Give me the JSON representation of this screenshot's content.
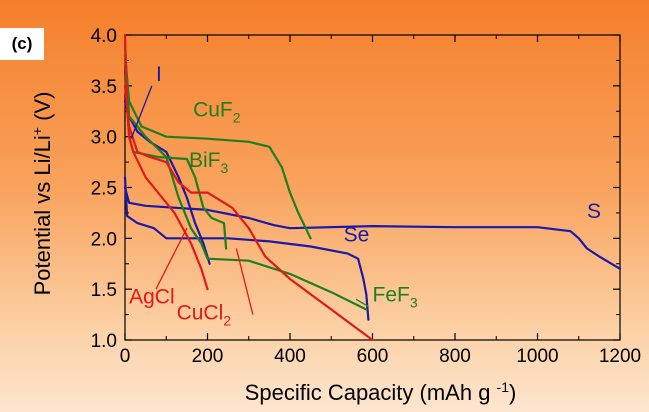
{
  "panel_label": "(c)",
  "chart_data": {
    "type": "line",
    "xlabel_main": "Specific Capacity",
    "xlabel_unit": "mAh g",
    "xlabel_unit_sup": "-1",
    "ylabel_main": "Potential vs Li/Li",
    "ylabel_sup": "+",
    "ylabel_unit": "(V)",
    "xlim": [
      0,
      1200
    ],
    "ylim": [
      1.0,
      4.0
    ],
    "xticks": [
      "0",
      "200",
      "400",
      "600",
      "800",
      "1000",
      "1200"
    ],
    "yticks": [
      "1.0",
      "1.5",
      "2.0",
      "2.5",
      "3.0",
      "3.5",
      "4.0"
    ],
    "grid": false,
    "series": [
      {
        "name": "S",
        "label_main": "S",
        "label_sub": "",
        "color": "#1a1aa8",
        "label_at": [
          1120,
          2.2
        ],
        "points": [
          [
            0,
            2.5
          ],
          [
            10,
            2.35
          ],
          [
            50,
            2.32
          ],
          [
            200,
            2.28
          ],
          [
            300,
            2.2
          ],
          [
            360,
            2.13
          ],
          [
            400,
            2.1
          ],
          [
            600,
            2.12
          ],
          [
            800,
            2.11
          ],
          [
            1000,
            2.11
          ],
          [
            1080,
            2.07
          ],
          [
            1100,
            2.0
          ],
          [
            1120,
            1.9
          ],
          [
            1150,
            1.82
          ],
          [
            1200,
            1.7
          ]
        ]
      },
      {
        "name": "Se",
        "label_main": "Se",
        "label_sub": "",
        "color": "#1a1aa8",
        "label_at": [
          530,
          1.97
        ],
        "points": [
          [
            0,
            2.6
          ],
          [
            5,
            2.22
          ],
          [
            30,
            2.15
          ],
          [
            70,
            2.1
          ],
          [
            100,
            2.0
          ],
          [
            150,
            2.0
          ],
          [
            250,
            2.0
          ],
          [
            350,
            1.97
          ],
          [
            450,
            1.92
          ],
          [
            540,
            1.85
          ],
          [
            565,
            1.8
          ],
          [
            578,
            1.6
          ],
          [
            585,
            1.45
          ],
          [
            590,
            1.2
          ]
        ]
      },
      {
        "name": "I",
        "label_main": "I",
        "label_sub": "",
        "color": "#1a1aa8",
        "label_at": [
          75,
          3.55
        ],
        "points": [
          [
            0,
            3.35
          ],
          [
            10,
            3.2
          ],
          [
            30,
            3.05
          ],
          [
            60,
            2.95
          ],
          [
            100,
            2.85
          ],
          [
            130,
            2.6
          ],
          [
            150,
            2.4
          ],
          [
            170,
            2.15
          ],
          [
            190,
            1.95
          ],
          [
            205,
            1.75
          ]
        ]
      },
      {
        "name": "CuF2",
        "label_main": "CuF",
        "label_sub": "2",
        "color": "#1f7f1f",
        "label_at": [
          165,
          3.2
        ],
        "points": [
          [
            0,
            3.8
          ],
          [
            10,
            3.35
          ],
          [
            40,
            3.1
          ],
          [
            100,
            3.0
          ],
          [
            200,
            2.98
          ],
          [
            300,
            2.95
          ],
          [
            350,
            2.9
          ],
          [
            380,
            2.7
          ],
          [
            400,
            2.45
          ],
          [
            420,
            2.25
          ],
          [
            450,
            2.0
          ]
        ]
      },
      {
        "name": "BiF3",
        "label_main": "BiF",
        "label_sub": "3",
        "color": "#1f7f1f",
        "label_at": [
          155,
          2.7
        ],
        "points": [
          [
            0,
            3.6
          ],
          [
            10,
            3.0
          ],
          [
            20,
            2.85
          ],
          [
            80,
            2.8
          ],
          [
            150,
            2.78
          ],
          [
            170,
            2.6
          ],
          [
            190,
            2.3
          ],
          [
            210,
            2.2
          ],
          [
            240,
            2.15
          ],
          [
            245,
            1.9
          ]
        ]
      },
      {
        "name": "FeF3",
        "label_main": "FeF",
        "label_sub": "3",
        "color": "#1f7f1f",
        "label_at": [
          600,
          1.38
        ],
        "points": [
          [
            0,
            3.9
          ],
          [
            10,
            3.2
          ],
          [
            50,
            3.0
          ],
          [
            100,
            2.8
          ],
          [
            130,
            2.4
          ],
          [
            160,
            2.1
          ],
          [
            185,
            1.95
          ],
          [
            200,
            1.8
          ],
          [
            300,
            1.78
          ],
          [
            400,
            1.65
          ],
          [
            500,
            1.47
          ],
          [
            585,
            1.3
          ]
        ]
      },
      {
        "name": "AgCl",
        "label_main": "AgCl",
        "label_sub": "",
        "color": "#e01a1a",
        "label_at": [
          10,
          1.36
        ],
        "points": [
          [
            0,
            4.0
          ],
          [
            5,
            3.3
          ],
          [
            10,
            3.0
          ],
          [
            20,
            2.85
          ],
          [
            50,
            2.6
          ],
          [
            80,
            2.45
          ],
          [
            120,
            2.25
          ],
          [
            160,
            1.95
          ],
          [
            185,
            1.7
          ],
          [
            200,
            1.5
          ]
        ]
      },
      {
        "name": "CuCl2",
        "label_main": "CuCl",
        "label_sub": "2",
        "color": "#e01a1a",
        "label_at": [
          125,
          1.2
        ],
        "points": [
          [
            0,
            3.5
          ],
          [
            10,
            3.1
          ],
          [
            30,
            2.85
          ],
          [
            60,
            2.8
          ],
          [
            100,
            2.75
          ],
          [
            130,
            2.55
          ],
          [
            160,
            2.45
          ],
          [
            200,
            2.45
          ],
          [
            260,
            2.3
          ],
          [
            300,
            2.1
          ],
          [
            340,
            1.82
          ],
          [
            400,
            1.6
          ],
          [
            500,
            1.3
          ],
          [
            600,
            1.0
          ]
        ]
      }
    ]
  }
}
